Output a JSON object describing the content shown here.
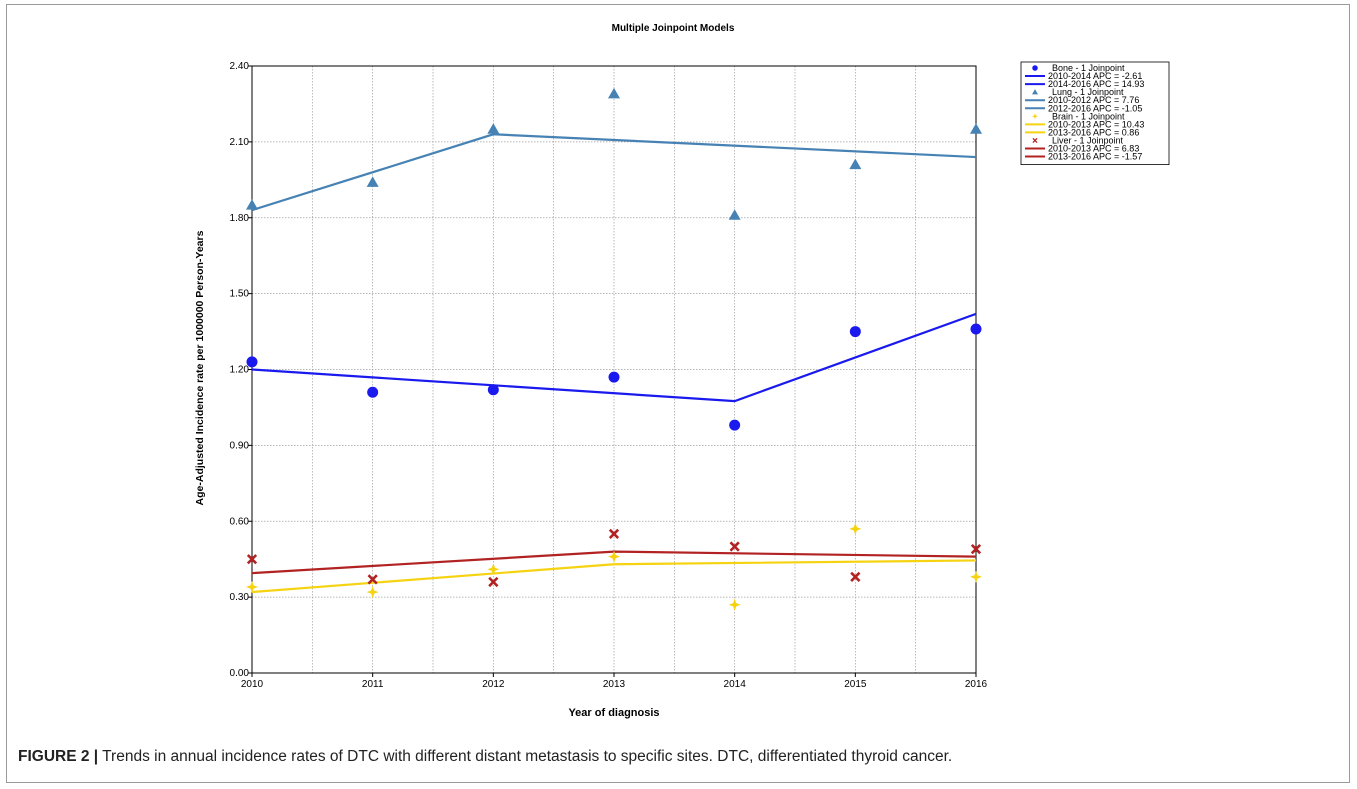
{
  "figure": {
    "caption_label": "FIGURE 2 |",
    "caption_text": " Trends in annual incidence rates of DTC with different distant metastasis to specific sites. DTC, differentiated thyroid cancer."
  },
  "chart_data": {
    "type": "scatter",
    "title": "Multiple Joinpoint Models",
    "xlabel": "Year of diagnosis",
    "ylabel": "Age-Adjusted Incidence rate per 1000000 Person-Years",
    "xlim": [
      2010,
      2016
    ],
    "ylim": [
      0,
      2.4
    ],
    "x_ticks": [
      "2010",
      "2011",
      "2012",
      "2013",
      "2014",
      "2015",
      "2016"
    ],
    "y_ticks": [
      "0.00",
      "0.30",
      "0.60",
      "0.90",
      "1.20",
      "1.50",
      "1.80",
      "2.10",
      "2.40"
    ],
    "grid": true,
    "legend_position": "right",
    "series": [
      {
        "name": "Bone - 1 Joinpoint",
        "color": "#1a1aee",
        "marker": "circle",
        "x": [
          2010,
          2011,
          2012,
          2013,
          2014,
          2015,
          2016
        ],
        "values": [
          1.23,
          1.11,
          1.12,
          1.17,
          0.98,
          1.35,
          1.36
        ],
        "fit": [
          [
            2010,
            1.2
          ],
          [
            2014,
            1.075
          ],
          [
            2016,
            1.42
          ]
        ],
        "segments": [
          "2010-2014 APC  = -2.61",
          "2014-2016 APC  = 14.93"
        ]
      },
      {
        "name": "Lung - 1 Joinpoint",
        "color": "#4682b4",
        "marker": "triangle",
        "x": [
          2010,
          2011,
          2012,
          2013,
          2014,
          2015,
          2016
        ],
        "values": [
          1.85,
          1.94,
          2.15,
          2.29,
          1.81,
          2.01,
          2.15
        ],
        "fit": [
          [
            2010,
            1.83
          ],
          [
            2012,
            2.13
          ],
          [
            2016,
            2.04
          ]
        ],
        "segments": [
          "2010-2012 APC  = 7.76",
          "2012-2016 APC  = -1.05"
        ]
      },
      {
        "name": "Brain - 1 Joinpoint",
        "color": "#f5d311",
        "marker": "star",
        "x": [
          2010,
          2011,
          2012,
          2013,
          2014,
          2015,
          2016
        ],
        "values": [
          0.34,
          0.32,
          0.41,
          0.46,
          0.27,
          0.57,
          0.38
        ],
        "fit": [
          [
            2010,
            0.32
          ],
          [
            2013,
            0.43
          ],
          [
            2016,
            0.445
          ]
        ],
        "segments": [
          "2010-2013 APC  = 10.43",
          "2013-2016 APC  = 0.86"
        ]
      },
      {
        "name": "Liver - 1 Joinpoint",
        "color": "#b22222",
        "marker": "x",
        "x": [
          2010,
          2011,
          2012,
          2013,
          2014,
          2015,
          2016
        ],
        "values": [
          0.45,
          0.37,
          0.36,
          0.55,
          0.5,
          0.38,
          0.49
        ],
        "fit": [
          [
            2010,
            0.395
          ],
          [
            2013,
            0.48
          ],
          [
            2016,
            0.46
          ]
        ],
        "segments": [
          "2010-2013 APC  = 6.83",
          "2013-2016 APC  = -1.57"
        ]
      }
    ]
  }
}
